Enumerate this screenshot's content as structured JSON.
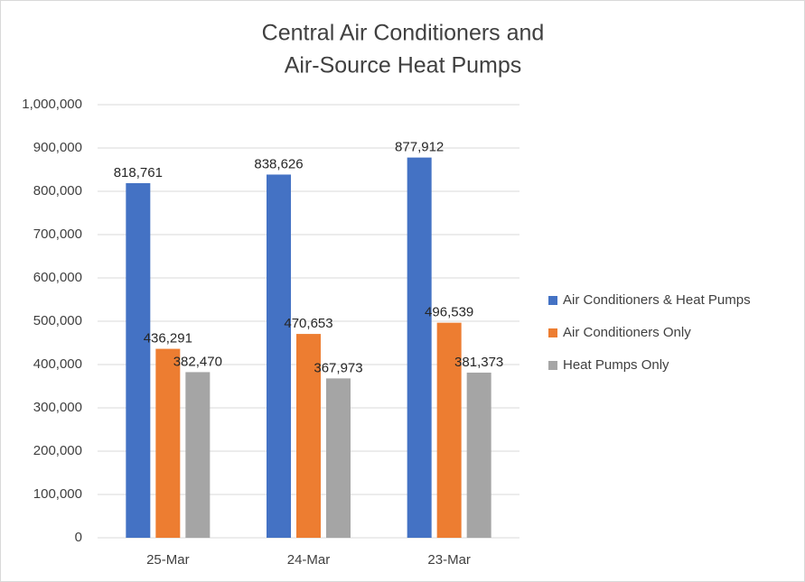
{
  "chart_data": {
    "type": "bar",
    "title": [
      "Central Air Conditioners and",
      "Air-Source Heat Pumps"
    ],
    "categories": [
      "25-Mar",
      "24-Mar",
      "23-Mar"
    ],
    "series": [
      {
        "name": "Air Conditioners & Heat Pumps",
        "color": "#4472c4",
        "values": [
          818761,
          838626,
          877912
        ],
        "value_labels": [
          "818,761",
          "838,626",
          "877,912"
        ]
      },
      {
        "name": "Air Conditioners Only",
        "color": "#ed7d31",
        "values": [
          436291,
          470653,
          496539
        ],
        "value_labels": [
          "436,291",
          "470,653",
          "496,539"
        ]
      },
      {
        "name": "Heat Pumps Only",
        "color": "#a5a5a5",
        "values": [
          382470,
          367973,
          381373
        ],
        "value_labels": [
          "382,470",
          "367,973",
          "381,373"
        ]
      }
    ],
    "ylim": [
      0,
      1000000
    ],
    "yticks": [
      0,
      {
        "value": 100000,
        "label": "100,000"
      },
      {
        "value": 200000,
        "label": "200,000"
      },
      {
        "value": 300000,
        "label": "300,000"
      },
      {
        "value": 400000,
        "label": "400,000"
      },
      {
        "value": 500000,
        "label": "500,000"
      },
      {
        "value": 600000,
        "label": "600,000"
      },
      {
        "value": 700000,
        "label": "700,000"
      },
      {
        "value": 800000,
        "label": "800,000"
      },
      {
        "value": 900000,
        "label": "900,000"
      },
      {
        "value": 1000000,
        "label": "1,000,000"
      }
    ],
    "grid": true,
    "legend": "right"
  }
}
